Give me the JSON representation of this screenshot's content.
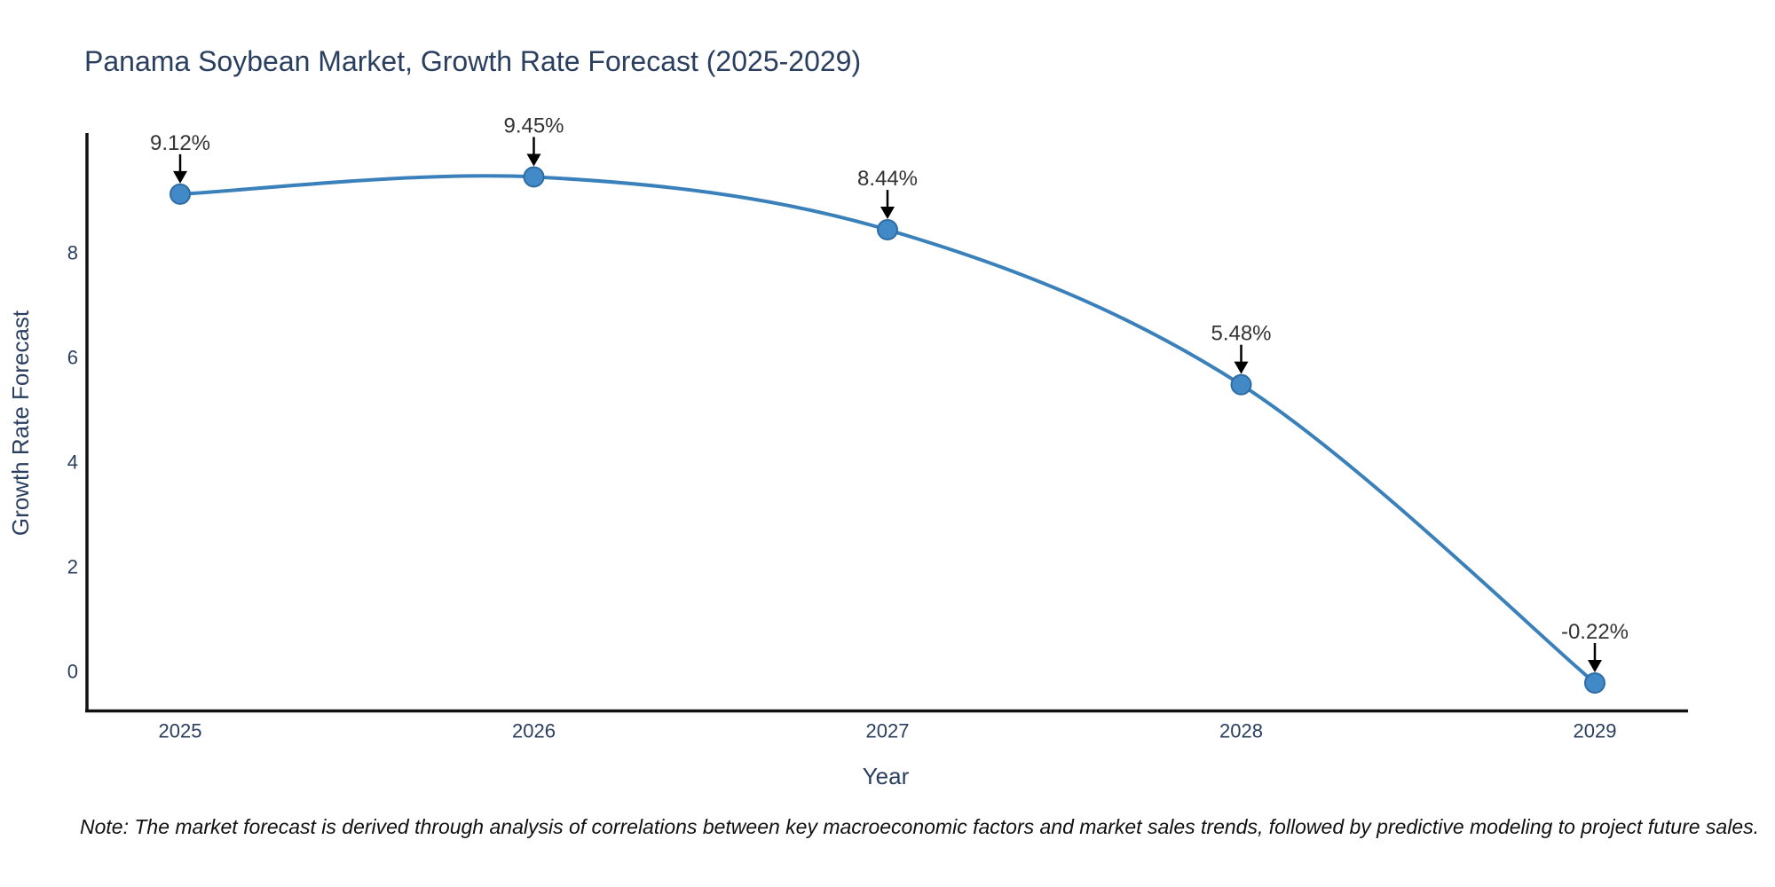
{
  "note": "Note: The market forecast is derived through analysis of correlations between key macroeconomic factors and market sales trends, followed by predictive modeling to project future sales.",
  "chart_data": {
    "type": "line",
    "title": "Panama Soybean Market, Growth Rate Forecast (2025-2029)",
    "xlabel": "Year",
    "ylabel": "Growth Rate Forecast",
    "x": [
      2025,
      2026,
      2027,
      2028,
      2029
    ],
    "values": [
      9.12,
      9.45,
      8.44,
      5.48,
      -0.22
    ],
    "point_labels": [
      "9.12%",
      "9.45%",
      "8.44%",
      "5.48%",
      "-0.22%"
    ],
    "x_tick_labels": [
      "2025",
      "2026",
      "2027",
      "2028",
      "2029"
    ],
    "y_ticks": [
      0,
      2,
      4,
      6,
      8
    ],
    "y_tick_labels": [
      "0",
      "2",
      "4",
      "6",
      "8"
    ],
    "ylim": [
      -0.8,
      10.3
    ],
    "line_shape": "spline",
    "grid": false,
    "legend": "none",
    "colors": {
      "line": "#3a80ba",
      "marker_fill": "#4189c7",
      "marker_edge": "#2e6da4",
      "axis_line": "#111111",
      "title_text": "#2a3f5f",
      "tick_text": "#2a3f5f",
      "annotation_text": "#333333",
      "arrow": "#000000",
      "background": "#ffffff"
    }
  }
}
